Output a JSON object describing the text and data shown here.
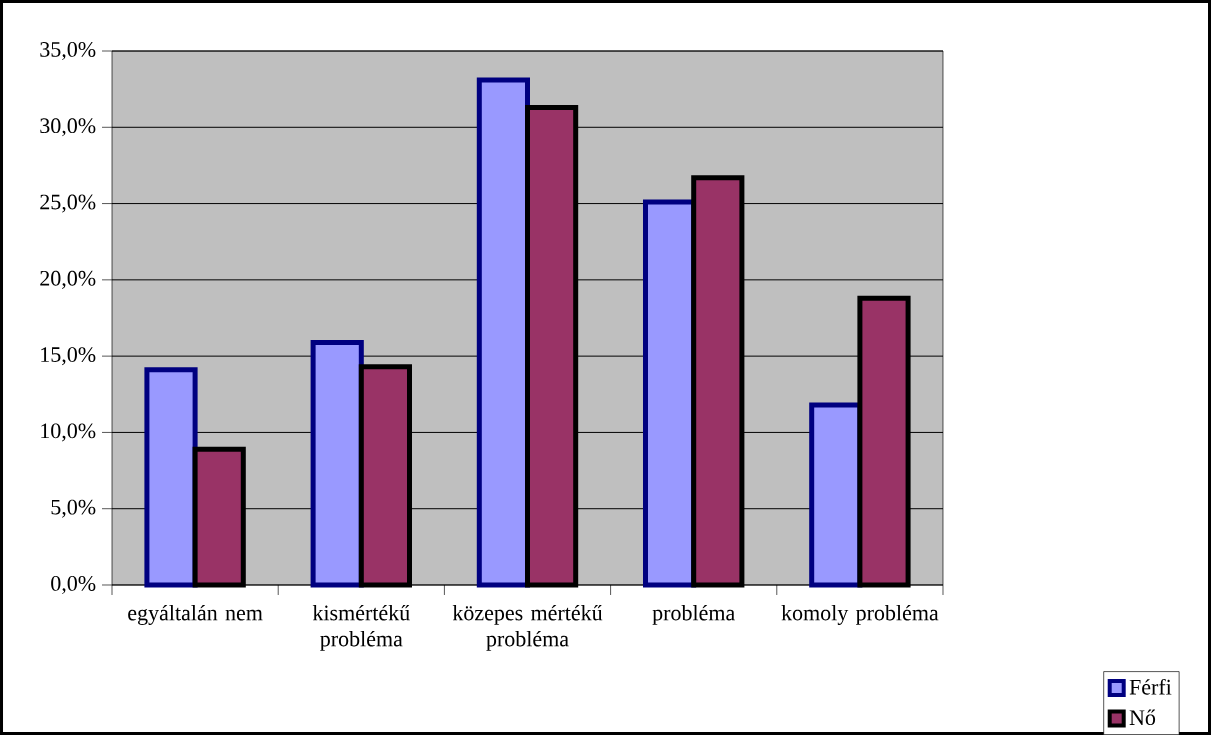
{
  "chart_data": {
    "type": "bar",
    "categories": [
      "egyáltalán nem",
      "kismértékű probléma",
      "közepes mértékű probléma",
      "probléma",
      "komoly probléma"
    ],
    "series": [
      {
        "name": "Férfi",
        "color": "#9999ff",
        "values": [
          14.1,
          15.9,
          33.1,
          25.1,
          11.8
        ]
      },
      {
        "name": "Nő",
        "color": "#993366",
        "values": [
          8.9,
          14.3,
          31.3,
          26.7,
          18.8
        ]
      }
    ],
    "ylim": [
      0,
      35
    ],
    "yticks": [
      {
        "value": 0,
        "label": "0,0%"
      },
      {
        "value": 5,
        "label": "5,0%"
      },
      {
        "value": 10,
        "label": "10,0%"
      },
      {
        "value": 15,
        "label": "15,0%"
      },
      {
        "value": 20,
        "label": "20,0%"
      },
      {
        "value": 25,
        "label": "25,0%"
      },
      {
        "value": 30,
        "label": "30,0%"
      },
      {
        "value": 35,
        "label": "35,0%"
      }
    ],
    "grid": "y",
    "legend": "bottom right"
  }
}
